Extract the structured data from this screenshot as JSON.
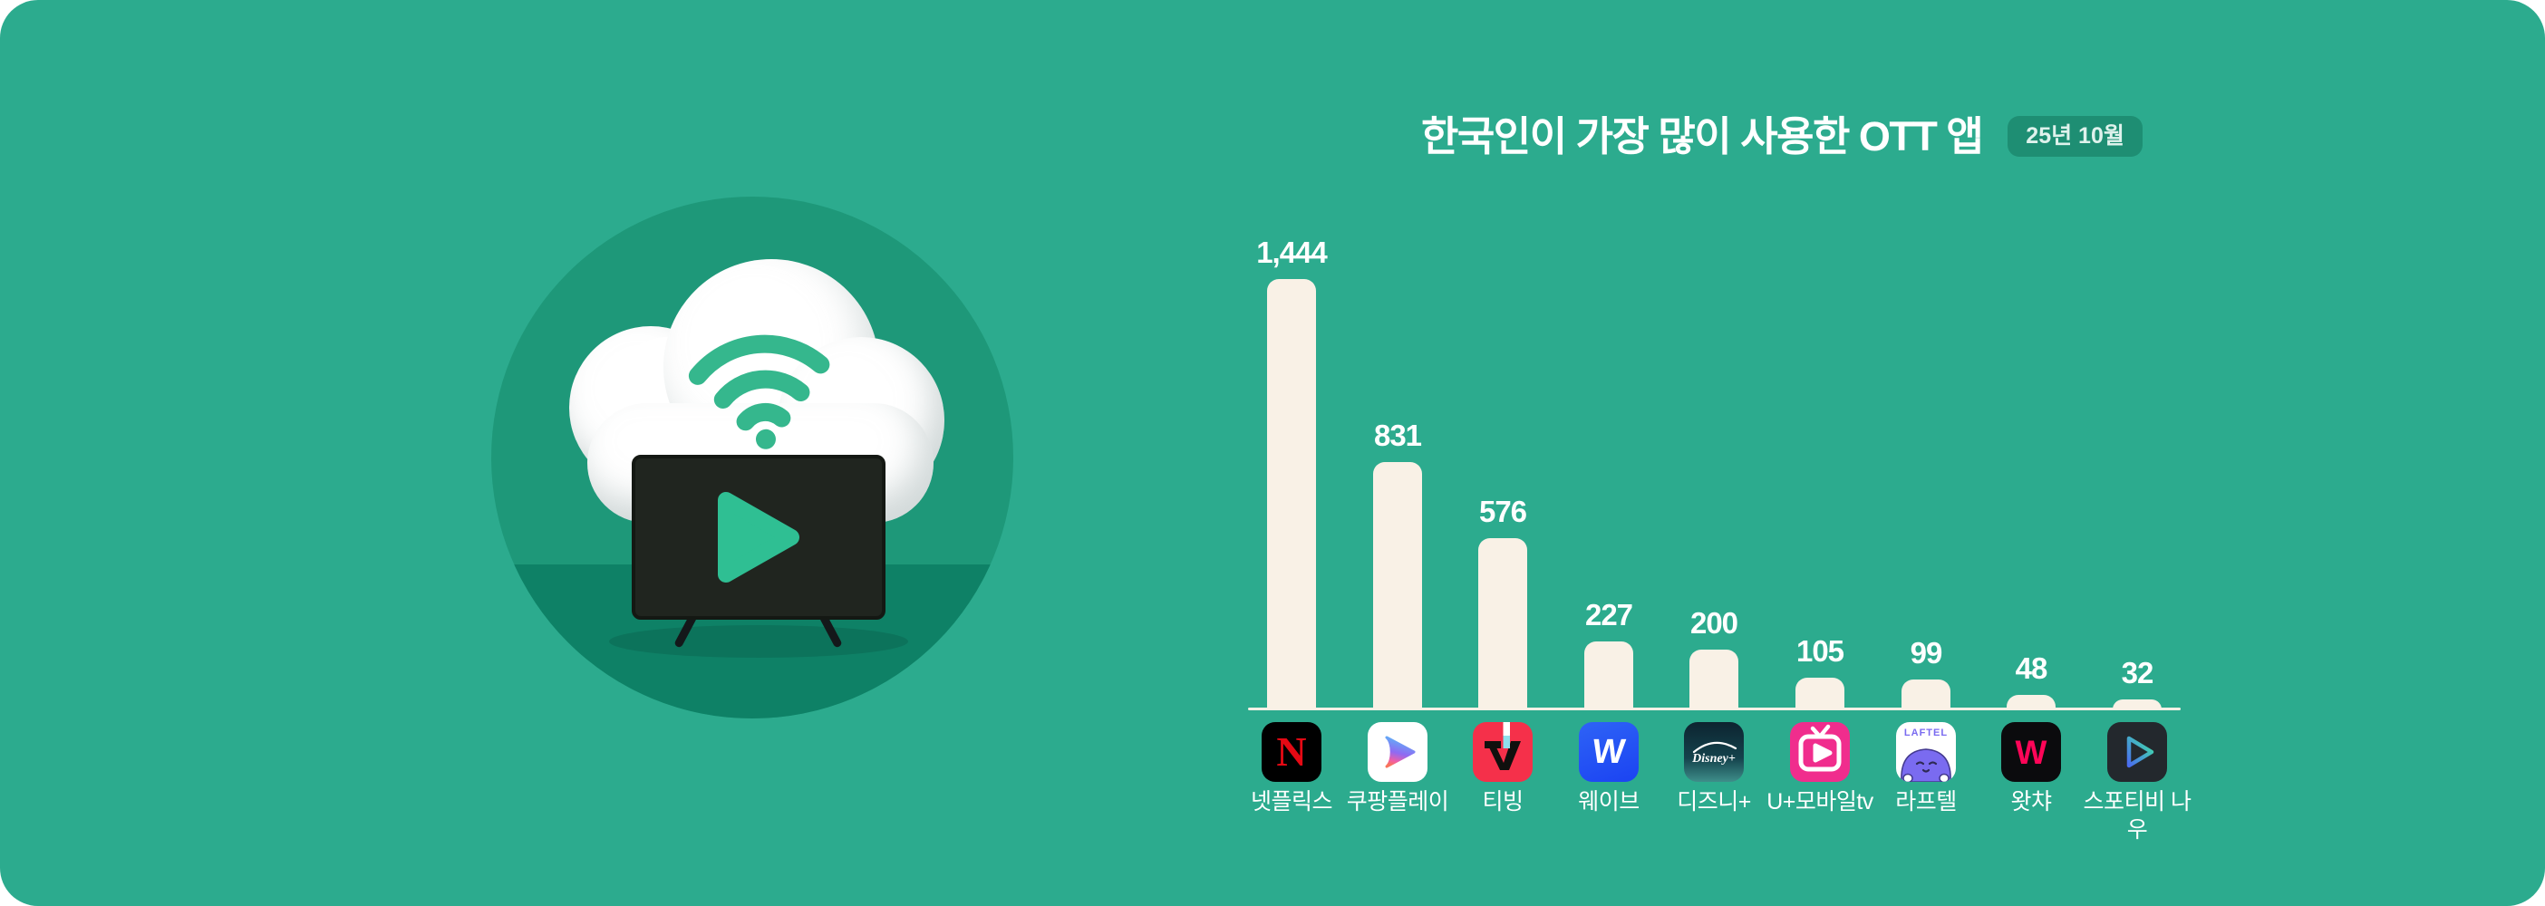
{
  "page": {
    "background_color": "#2CAB8E",
    "corner_radius_note": "rounded card on white canvas"
  },
  "header": {
    "title": "한국인이 가장 많이 사용한 OTT 앱",
    "period_badge": "25년 10월",
    "badge_bg_color": "#1E8E73"
  },
  "illustration": {
    "icon_name": "cloud-wifi-streaming-tv-illustration",
    "circle_color": "#1E9879",
    "circle_floor_color": "#0E8166",
    "wifi_color": "#35B78D",
    "play_color": "#2FBF93"
  },
  "chart_data": {
    "type": "bar",
    "title": "한국인이 가장 많이 사용한 OTT 앱",
    "period": "25년 10월",
    "categories": [
      "넷플릭스",
      "쿠팡플레이",
      "티빙",
      "웨이브",
      "디즈니+",
      "U+모바일tv",
      "라프텔",
      "왓챠",
      "스포티비 나우"
    ],
    "values": [
      1444,
      831,
      576,
      227,
      200,
      105,
      99,
      48,
      32
    ],
    "value_labels": [
      "1,444",
      "831",
      "576",
      "227",
      "200",
      "105",
      "99",
      "48",
      "32"
    ],
    "xlabel": "",
    "ylabel": "",
    "ylim": [
      0,
      1500
    ],
    "grid": false,
    "legend": "none",
    "bar_color": "#F9F1E6",
    "axis_color": "#F9F1E6",
    "icon_names": [
      "netflix-icon",
      "coupang-play-icon",
      "tving-icon",
      "wavve-icon",
      "disney-plus-icon",
      "u-plus-mobile-tv-icon",
      "laftel-icon",
      "watcha-icon",
      "spotv-now-icon"
    ]
  },
  "icon_texts": {
    "netflix_letter": "N",
    "tving_text": "tv",
    "wavve_letter": "W",
    "disney_text": "Disney+",
    "laftel_text": "LAFTEL",
    "watcha_letter": "W"
  }
}
